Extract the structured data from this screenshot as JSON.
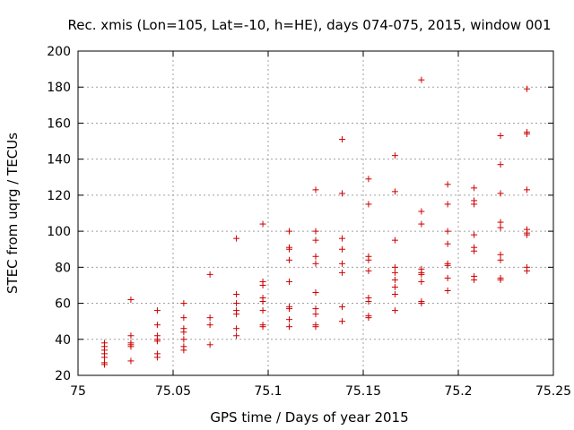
{
  "chart_data": {
    "type": "scatter",
    "title": "Rec. xmis (Lon=105, Lat=-10, h=HE), days 074-075, 2015, window 001",
    "xlabel": "GPS time / Days of year 2015",
    "ylabel": "STEC from uqrg / TECUs",
    "xlim": [
      75,
      75.25
    ],
    "ylim": [
      20,
      200
    ],
    "xticks": [
      75,
      75.05,
      75.1,
      75.15,
      75.2,
      75.25
    ],
    "xtick_labels": [
      "75",
      "75.05",
      "75.1",
      "75.15",
      "75.2",
      "75.25"
    ],
    "yticks": [
      20,
      40,
      60,
      80,
      100,
      120,
      140,
      160,
      180,
      200
    ],
    "ytick_labels": [
      "20",
      "40",
      "60",
      "80",
      "100",
      "120",
      "140",
      "160",
      "180",
      "200"
    ],
    "grid": true,
    "marker": "+",
    "color": "#cc0000",
    "x": [
      75.0139,
      75.0139,
      75.0139,
      75.0139,
      75.0139,
      75.0139,
      75.0139,
      75.0278,
      75.0278,
      75.0278,
      75.0278,
      75.0278,
      75.0278,
      75.0417,
      75.0417,
      75.0417,
      75.0417,
      75.0417,
      75.0417,
      75.0417,
      75.0556,
      75.0556,
      75.0556,
      75.0556,
      75.0556,
      75.0556,
      75.0556,
      75.0694,
      75.0694,
      75.0694,
      75.0694,
      75.0833,
      75.0833,
      75.0833,
      75.0833,
      75.0833,
      75.0833,
      75.0833,
      75.0972,
      75.0972,
      75.0972,
      75.0972,
      75.0972,
      75.0972,
      75.0972,
      75.0972,
      75.1111,
      75.1111,
      75.1111,
      75.1111,
      75.1111,
      75.1111,
      75.1111,
      75.1111,
      75.1111,
      75.125,
      75.125,
      75.125,
      75.125,
      75.125,
      75.125,
      75.125,
      75.125,
      75.125,
      75.125,
      75.1389,
      75.1389,
      75.1389,
      75.1389,
      75.1389,
      75.1389,
      75.1389,
      75.1389,
      75.1528,
      75.1528,
      75.1528,
      75.1528,
      75.1528,
      75.1528,
      75.1528,
      75.1528,
      75.1528,
      75.1667,
      75.1667,
      75.1667,
      75.1667,
      75.1667,
      75.1667,
      75.1667,
      75.1667,
      75.1667,
      75.1806,
      75.1806,
      75.1806,
      75.1806,
      75.1806,
      75.1806,
      75.1806,
      75.1806,
      75.1806,
      75.1944,
      75.1944,
      75.1944,
      75.1944,
      75.1944,
      75.1944,
      75.1944,
      75.1944,
      75.2083,
      75.2083,
      75.2083,
      75.2083,
      75.2083,
      75.2083,
      75.2083,
      75.2083,
      75.2222,
      75.2222,
      75.2222,
      75.2222,
      75.2222,
      75.2222,
      75.2222,
      75.2222,
      75.2222,
      75.2361,
      75.2361,
      75.2361,
      75.2361,
      75.2361,
      75.2361,
      75.2361,
      75.2361,
      75.2361
    ],
    "y": [
      38,
      36,
      34,
      32,
      30,
      27,
      26,
      62,
      42,
      38,
      37,
      36,
      28,
      56,
      48,
      42,
      40,
      39,
      32,
      30,
      60,
      52,
      46,
      44,
      40,
      36,
      34,
      76,
      52,
      48,
      37,
      96,
      65,
      60,
      56,
      54,
      46,
      42,
      104,
      72,
      70,
      63,
      61,
      56,
      48,
      47,
      100,
      91,
      90,
      84,
      72,
      58,
      57,
      51,
      47,
      123,
      100,
      95,
      86,
      82,
      66,
      57,
      54,
      48,
      47,
      151,
      121,
      96,
      90,
      82,
      77,
      58,
      50,
      129,
      115,
      86,
      84,
      78,
      63,
      61,
      53,
      52,
      142,
      122,
      95,
      80,
      77,
      73,
      69,
      65,
      56,
      184,
      111,
      104,
      79,
      77,
      76,
      72,
      61,
      60,
      126,
      115,
      100,
      93,
      82,
      81,
      74,
      67,
      124,
      117,
      115,
      98,
      91,
      89,
      75,
      73,
      153,
      137,
      121,
      105,
      102,
      87,
      84,
      74,
      73,
      179,
      155,
      154,
      123,
      101,
      99,
      98,
      80,
      78
    ]
  }
}
